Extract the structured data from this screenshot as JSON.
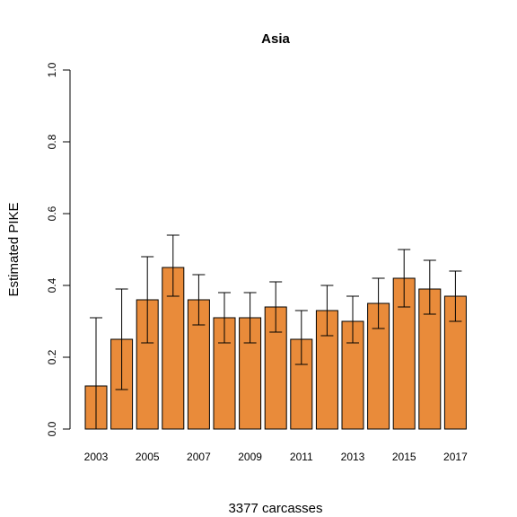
{
  "chart_data": {
    "type": "bar",
    "title": "Asia",
    "xlabel": "3377 carcasses",
    "ylabel": "Estimated PIKE",
    "ylim": [
      0,
      1
    ],
    "yticks": [
      "0.0",
      "0.2",
      "0.4",
      "0.6",
      "0.8",
      "1.0"
    ],
    "categories": [
      "2003",
      "2004",
      "2005",
      "2006",
      "2007",
      "2008",
      "2009",
      "2010",
      "2011",
      "2012",
      "2013",
      "2014",
      "2015",
      "2016",
      "2017"
    ],
    "tick_labels": [
      "2003",
      "",
      "2005",
      "",
      "2007",
      "",
      "2009",
      "",
      "2011",
      "",
      "2013",
      "",
      "2015",
      "",
      "2017"
    ],
    "values": [
      0.12,
      0.25,
      0.36,
      0.45,
      0.36,
      0.31,
      0.31,
      0.34,
      0.25,
      0.33,
      0.3,
      0.35,
      0.42,
      0.39,
      0.37
    ],
    "err_low": [
      0.0,
      0.11,
      0.24,
      0.37,
      0.29,
      0.24,
      0.24,
      0.27,
      0.18,
      0.26,
      0.24,
      0.28,
      0.34,
      0.32,
      0.3
    ],
    "err_high": [
      0.31,
      0.39,
      0.48,
      0.54,
      0.43,
      0.38,
      0.38,
      0.41,
      0.33,
      0.4,
      0.37,
      0.42,
      0.5,
      0.47,
      0.44
    ],
    "bar_color": "#E98B3A",
    "grid": false
  }
}
